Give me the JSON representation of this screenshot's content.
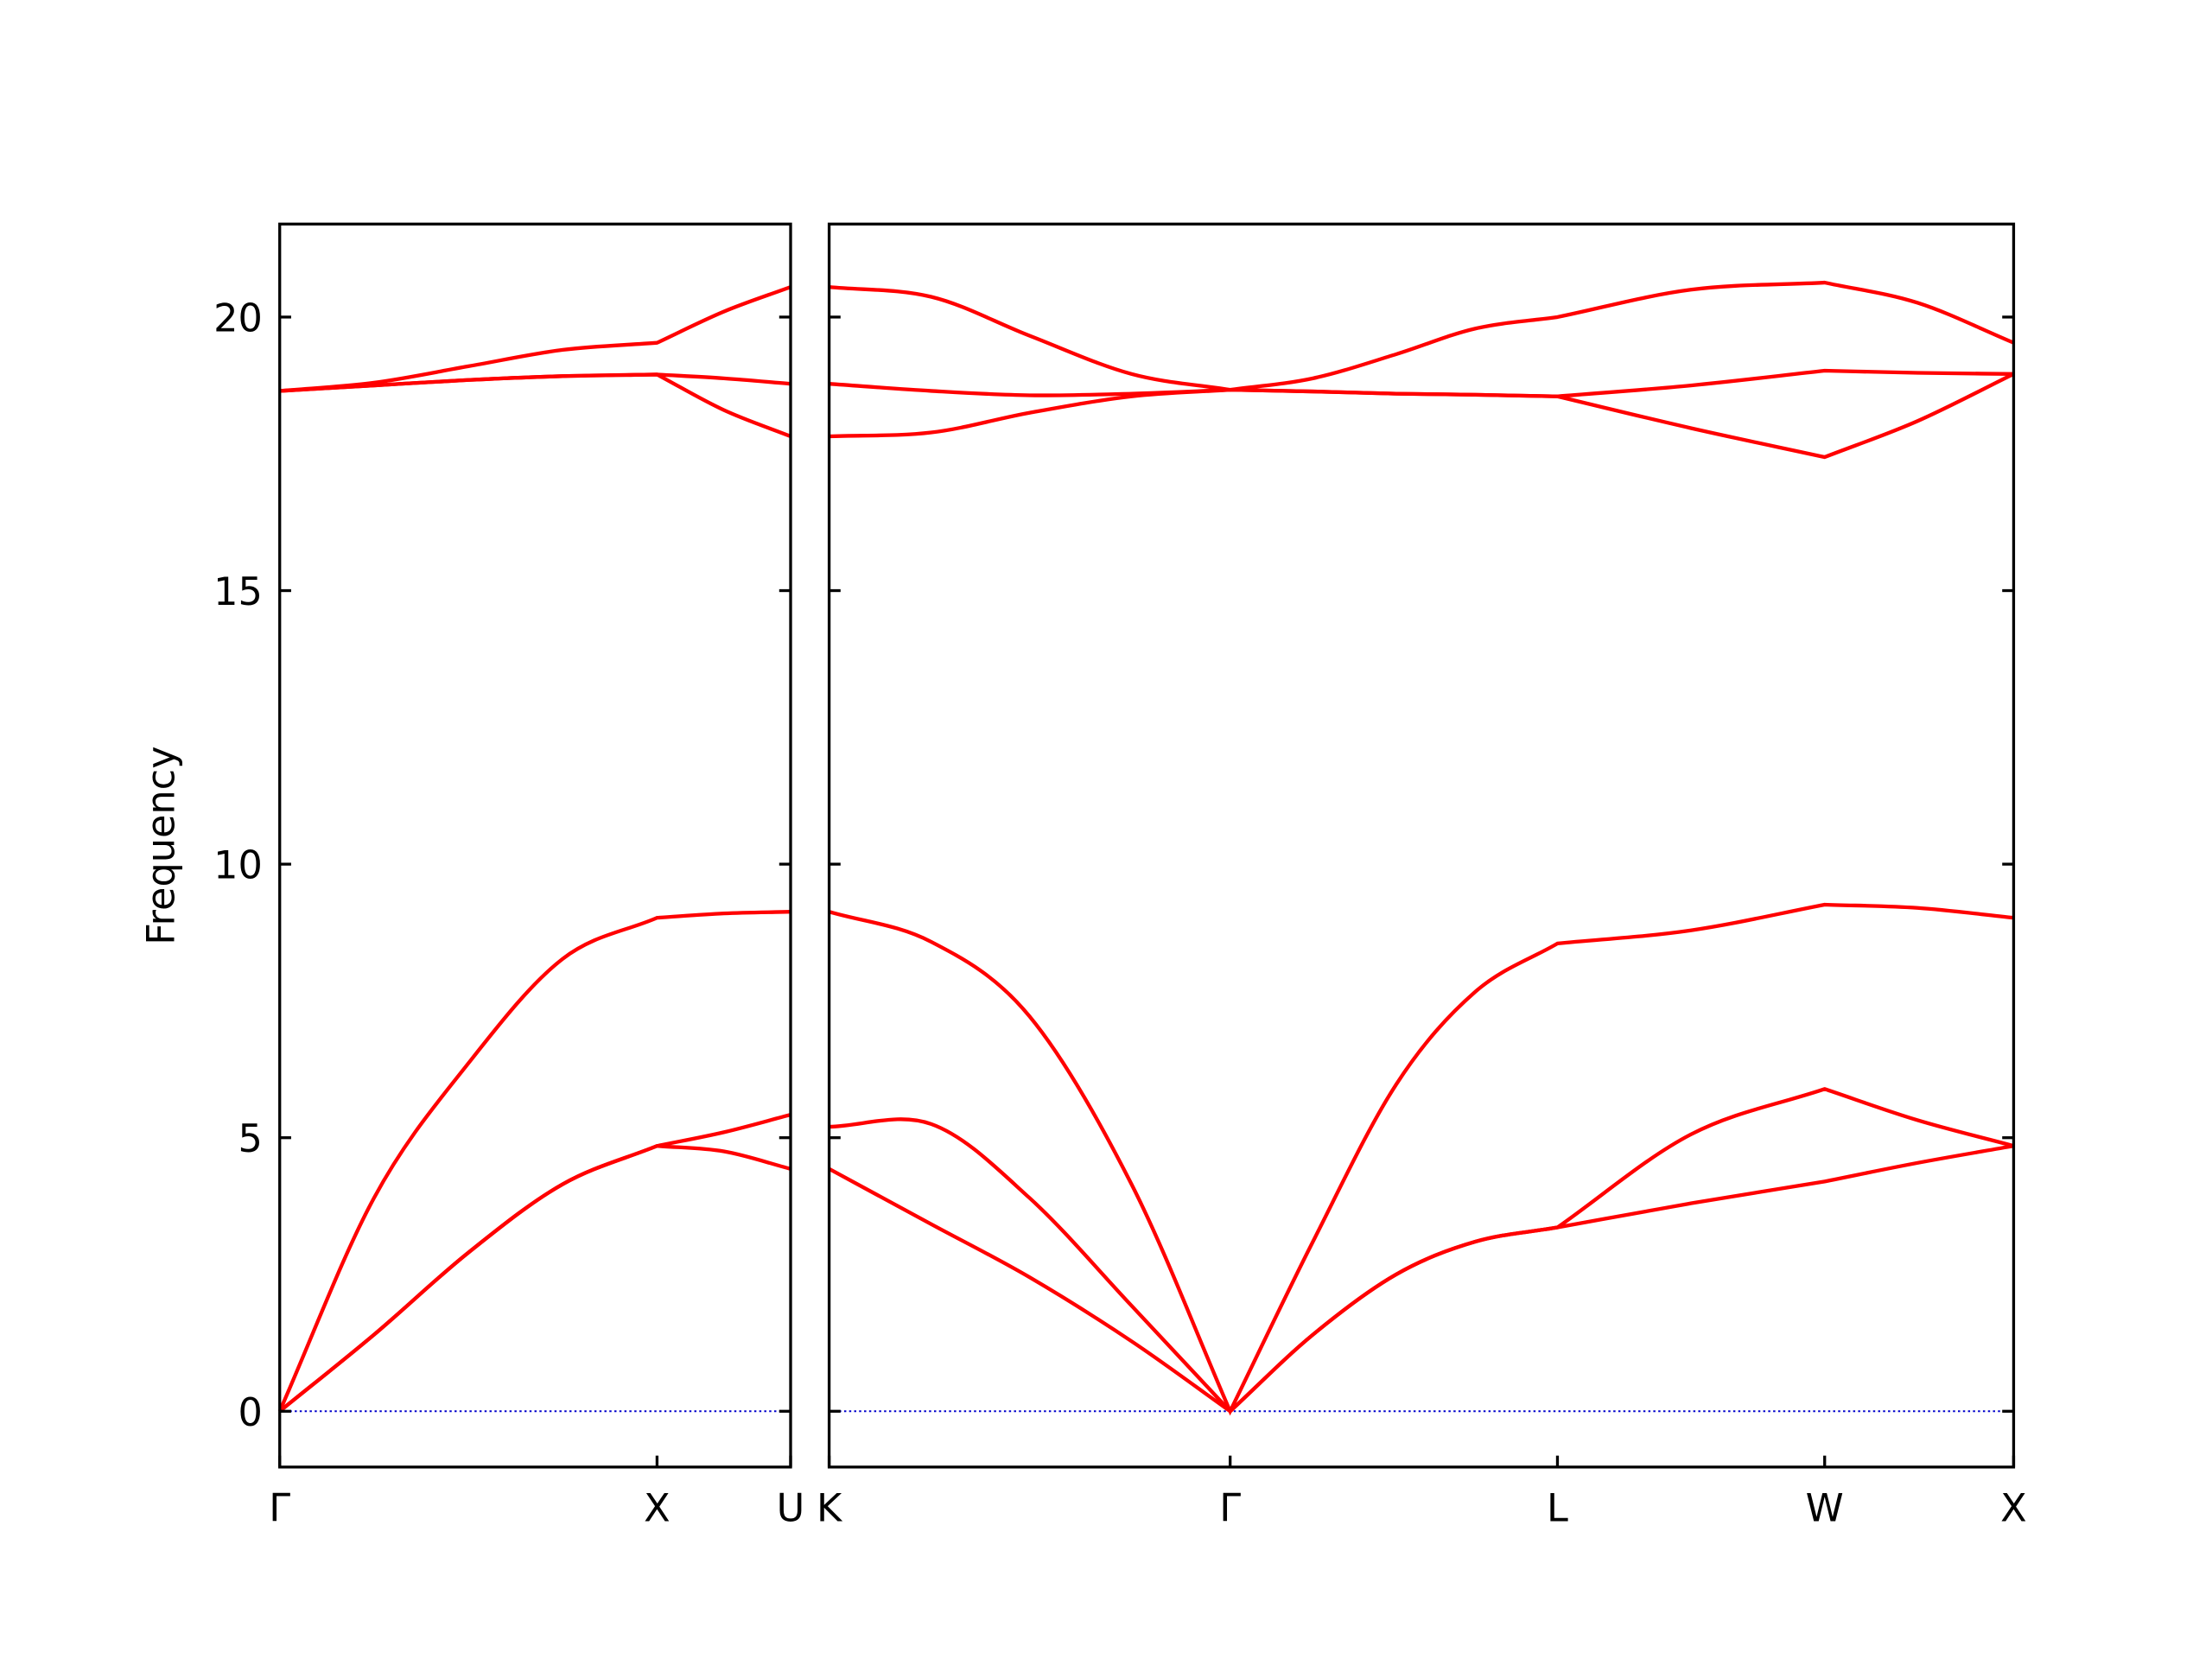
{
  "chart_data": [
    {
      "type": "line",
      "ylabel": "Frequency",
      "x": [
        0,
        0.25,
        0.5,
        0.75,
        1,
        1.177,
        1.354
      ],
      "xlim": [
        0,
        1.354
      ],
      "xticks": [
        {
          "value": 0,
          "label": "Γ"
        },
        {
          "value": 1,
          "label": "X"
        },
        {
          "value": 1.354,
          "label": "U"
        }
      ],
      "ylim": [
        -1.02,
        21.7
      ],
      "yticks": [
        0,
        5,
        10,
        15,
        20
      ],
      "ytick_labels": true,
      "zero_line": true,
      "zero_line_color": "#0000cc",
      "series": [
        {
          "color": "#ff0000",
          "values": [
            0,
            1.4,
            2.9,
            4.15,
            4.85,
            4.75,
            4.43
          ]
        },
        {
          "color": "#ff0000",
          "values": [
            0,
            1.4,
            2.9,
            4.15,
            4.85,
            5.1,
            5.42
          ]
        },
        {
          "color": "#ff0000",
          "values": [
            0,
            3.9,
            6.36,
            8.27,
            9.02,
            9.1,
            9.13
          ]
        },
        {
          "color": "#ff0000",
          "values": [
            18.65,
            18.75,
            18.85,
            18.92,
            18.95,
            18.3,
            17.82
          ]
        },
        {
          "color": "#ff0000",
          "values": [
            18.65,
            18.75,
            18.85,
            18.92,
            18.95,
            18.88,
            18.78
          ]
        },
        {
          "color": "#ff0000",
          "values": [
            18.65,
            18.8,
            19.1,
            19.4,
            19.53,
            20.1,
            20.55
          ]
        }
      ]
    },
    {
      "type": "line",
      "x": [
        0,
        0.27,
        0.53,
        0.8,
        1.061,
        1.28,
        1.5,
        1.71,
        1.927,
        2.28,
        2.634,
        2.88,
        3.134
      ],
      "xlim": [
        0,
        3.134
      ],
      "xticks": [
        {
          "value": 0,
          "label": "K"
        },
        {
          "value": 1.061,
          "label": "Γ"
        },
        {
          "value": 1.927,
          "label": "L"
        },
        {
          "value": 2.634,
          "label": "W"
        },
        {
          "value": 3.134,
          "label": "X"
        }
      ],
      "ylim": [
        -1.02,
        21.7
      ],
      "yticks": [
        0,
        5,
        10,
        15,
        20
      ],
      "ytick_labels": false,
      "zero_line": true,
      "zero_line_color": "#0000cc",
      "series": [
        {
          "color": "#ff0000",
          "values": [
            4.43,
            3.42,
            2.45,
            1.28,
            0,
            1.4,
            2.5,
            3.1,
            3.36,
            3.8,
            4.2,
            4.54,
            4.85
          ]
        },
        {
          "color": "#ff0000",
          "values": [
            5.2,
            5.25,
            3.9,
            1.93,
            0,
            1.4,
            2.5,
            3.1,
            3.36,
            5.06,
            5.89,
            5.32,
            4.85
          ]
        },
        {
          "color": "#ff0000",
          "values": [
            9.13,
            8.58,
            7.22,
            4.15,
            0,
            3.1,
            5.97,
            7.67,
            8.55,
            8.79,
            9.26,
            9.2,
            9.02
          ]
        },
        {
          "color": "#ff0000",
          "values": [
            17.82,
            17.89,
            18.25,
            18.55,
            18.67,
            18.64,
            18.6,
            18.58,
            18.55,
            17.97,
            17.44,
            18.1,
            18.96
          ]
        },
        {
          "color": "#ff0000",
          "values": [
            18.78,
            18.65,
            18.57,
            18.6,
            18.67,
            18.64,
            18.6,
            18.58,
            18.55,
            18.75,
            19.02,
            18.98,
            18.96
          ]
        },
        {
          "color": "#ff0000",
          "values": [
            20.55,
            20.37,
            19.66,
            18.96,
            18.67,
            18.88,
            19.32,
            19.79,
            20.0,
            20.5,
            20.63,
            20.26,
            19.53
          ]
        }
      ]
    }
  ]
}
